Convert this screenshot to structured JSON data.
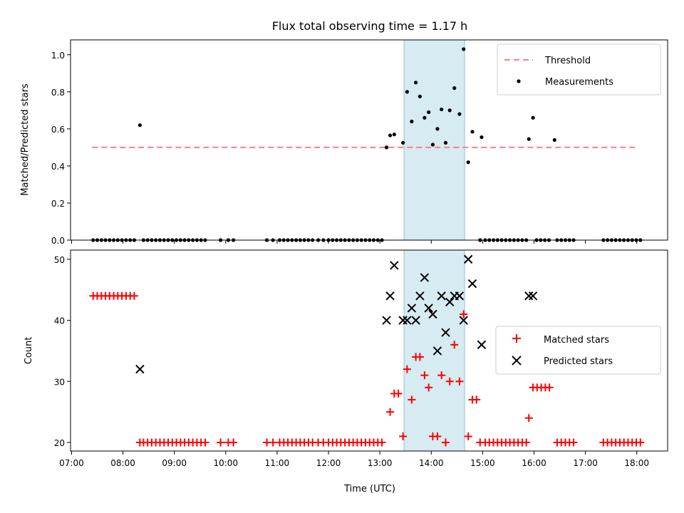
{
  "chart_data": [
    {
      "type": "scatter",
      "title": "Flux total observing time = 1.17 h",
      "ylabel": "Matched/Predicted stars",
      "xlabel": "",
      "x_range_hours": [
        6.98,
        18.6
      ],
      "ylim": [
        0,
        1.08
      ],
      "yticks": [
        "0.0",
        "0.2",
        "0.4",
        "0.6",
        "0.8",
        "1.0"
      ],
      "yticks_values": [
        0,
        0.2,
        0.4,
        0.6,
        0.8,
        1.0
      ],
      "highlight_span": {
        "start": 13.47,
        "end": 14.65,
        "color": "#add8e6"
      },
      "threshold": {
        "name": "Threshold",
        "value": 0.5,
        "x_start": 7.4,
        "x_end": 18.0,
        "color": "#ff7f7f"
      },
      "measurements_name": "Measurements",
      "zero_points": [
        7.42,
        7.5,
        7.58,
        7.66,
        7.74,
        7.82,
        7.9,
        7.98,
        8.06,
        8.14,
        8.22,
        8.4,
        8.48,
        8.56,
        8.64,
        8.72,
        8.8,
        8.88,
        8.96,
        9.04,
        9.12,
        9.2,
        9.28,
        9.36,
        9.44,
        9.52,
        9.6,
        9.9,
        10.05,
        10.15,
        10.8,
        10.92,
        11.05,
        11.13,
        11.21,
        11.29,
        11.37,
        11.45,
        11.53,
        11.61,
        11.69,
        11.8,
        11.9,
        12.0,
        12.08,
        12.16,
        12.24,
        12.32,
        12.4,
        12.48,
        12.56,
        12.64,
        12.72,
        12.8,
        12.88,
        12.96,
        13.04,
        14.95,
        15.05,
        15.13,
        15.21,
        15.29,
        15.37,
        15.45,
        15.53,
        15.61,
        15.69,
        15.77,
        15.85,
        16.05,
        16.13,
        16.21,
        16.29,
        16.45,
        16.53,
        16.61,
        16.69,
        16.77,
        17.35,
        17.43,
        17.51,
        17.59,
        17.67,
        17.75,
        17.83,
        17.91,
        17.99,
        18.07
      ],
      "points": [
        {
          "x": 8.33,
          "y": 0.62
        },
        {
          "x": 13.13,
          "y": 0.5
        },
        {
          "x": 13.2,
          "y": 0.565
        },
        {
          "x": 13.28,
          "y": 0.57
        },
        {
          "x": 13.45,
          "y": 0.525
        },
        {
          "x": 13.53,
          "y": 0.8
        },
        {
          "x": 13.62,
          "y": 0.64
        },
        {
          "x": 13.7,
          "y": 0.85
        },
        {
          "x": 13.78,
          "y": 0.775
        },
        {
          "x": 13.87,
          "y": 0.66
        },
        {
          "x": 13.95,
          "y": 0.69
        },
        {
          "x": 14.03,
          "y": 0.515
        },
        {
          "x": 14.12,
          "y": 0.6
        },
        {
          "x": 14.2,
          "y": 0.705
        },
        {
          "x": 14.28,
          "y": 0.525
        },
        {
          "x": 14.36,
          "y": 0.7
        },
        {
          "x": 14.45,
          "y": 0.82
        },
        {
          "x": 14.55,
          "y": 0.68
        },
        {
          "x": 14.63,
          "y": 1.03
        },
        {
          "x": 14.72,
          "y": 0.42
        },
        {
          "x": 14.8,
          "y": 0.585
        },
        {
          "x": 14.98,
          "y": 0.555
        },
        {
          "x": 15.9,
          "y": 0.545
        },
        {
          "x": 15.98,
          "y": 0.66
        },
        {
          "x": 16.4,
          "y": 0.54
        }
      ]
    },
    {
      "type": "scatter",
      "title": "",
      "ylabel": "Count",
      "xlabel": "Time (UTC)",
      "x_range_hours": [
        6.98,
        18.6
      ],
      "ylim": [
        18.6,
        51.5
      ],
      "yticks": [
        "20",
        "30",
        "40",
        "50"
      ],
      "yticks_values": [
        20,
        30,
        40,
        50
      ],
      "xticks": [
        "07:00",
        "08:00",
        "09:00",
        "10:00",
        "11:00",
        "12:00",
        "13:00",
        "14:00",
        "15:00",
        "16:00",
        "17:00",
        "18:00"
      ],
      "xticks_values": [
        7,
        8,
        9,
        10,
        11,
        12,
        13,
        14,
        15,
        16,
        17,
        18
      ],
      "highlight_span": {
        "start": 13.47,
        "end": 14.65,
        "color": "#add8e6"
      },
      "legend_position": "center-right",
      "series": [
        {
          "name": "Matched stars",
          "marker": "+",
          "color": "#ff0000",
          "points": [
            {
              "x": 7.42,
              "y": 44
            },
            {
              "x": 7.5,
              "y": 44
            },
            {
              "x": 7.58,
              "y": 44
            },
            {
              "x": 7.66,
              "y": 44
            },
            {
              "x": 7.74,
              "y": 44
            },
            {
              "x": 7.82,
              "y": 44
            },
            {
              "x": 7.9,
              "y": 44
            },
            {
              "x": 7.98,
              "y": 44
            },
            {
              "x": 8.06,
              "y": 44
            },
            {
              "x": 8.14,
              "y": 44
            },
            {
              "x": 8.22,
              "y": 44
            },
            {
              "x": 8.33,
              "y": 20
            },
            {
              "x": 8.4,
              "y": 20
            },
            {
              "x": 8.48,
              "y": 20
            },
            {
              "x": 8.56,
              "y": 20
            },
            {
              "x": 8.64,
              "y": 20
            },
            {
              "x": 8.72,
              "y": 20
            },
            {
              "x": 8.8,
              "y": 20
            },
            {
              "x": 8.88,
              "y": 20
            },
            {
              "x": 8.96,
              "y": 20
            },
            {
              "x": 9.04,
              "y": 20
            },
            {
              "x": 9.12,
              "y": 20
            },
            {
              "x": 9.2,
              "y": 20
            },
            {
              "x": 9.28,
              "y": 20
            },
            {
              "x": 9.36,
              "y": 20
            },
            {
              "x": 9.44,
              "y": 20
            },
            {
              "x": 9.52,
              "y": 20
            },
            {
              "x": 9.6,
              "y": 20
            },
            {
              "x": 9.9,
              "y": 20
            },
            {
              "x": 10.05,
              "y": 20
            },
            {
              "x": 10.15,
              "y": 20
            },
            {
              "x": 10.8,
              "y": 20
            },
            {
              "x": 10.92,
              "y": 20
            },
            {
              "x": 11.05,
              "y": 20
            },
            {
              "x": 11.13,
              "y": 20
            },
            {
              "x": 11.21,
              "y": 20
            },
            {
              "x": 11.29,
              "y": 20
            },
            {
              "x": 11.37,
              "y": 20
            },
            {
              "x": 11.45,
              "y": 20
            },
            {
              "x": 11.53,
              "y": 20
            },
            {
              "x": 11.61,
              "y": 20
            },
            {
              "x": 11.69,
              "y": 20
            },
            {
              "x": 11.8,
              "y": 20
            },
            {
              "x": 11.9,
              "y": 20
            },
            {
              "x": 12.0,
              "y": 20
            },
            {
              "x": 12.08,
              "y": 20
            },
            {
              "x": 12.16,
              "y": 20
            },
            {
              "x": 12.24,
              "y": 20
            },
            {
              "x": 12.32,
              "y": 20
            },
            {
              "x": 12.4,
              "y": 20
            },
            {
              "x": 12.48,
              "y": 20
            },
            {
              "x": 12.56,
              "y": 20
            },
            {
              "x": 12.64,
              "y": 20
            },
            {
              "x": 12.72,
              "y": 20
            },
            {
              "x": 12.8,
              "y": 20
            },
            {
              "x": 12.88,
              "y": 20
            },
            {
              "x": 12.96,
              "y": 20
            },
            {
              "x": 13.04,
              "y": 20
            },
            {
              "x": 13.2,
              "y": 25
            },
            {
              "x": 13.28,
              "y": 28
            },
            {
              "x": 13.36,
              "y": 28
            },
            {
              "x": 13.45,
              "y": 21
            },
            {
              "x": 13.53,
              "y": 32
            },
            {
              "x": 13.62,
              "y": 27
            },
            {
              "x": 13.7,
              "y": 34
            },
            {
              "x": 13.78,
              "y": 34
            },
            {
              "x": 13.87,
              "y": 31
            },
            {
              "x": 13.95,
              "y": 29
            },
            {
              "x": 14.03,
              "y": 21
            },
            {
              "x": 14.12,
              "y": 21
            },
            {
              "x": 14.2,
              "y": 31
            },
            {
              "x": 14.28,
              "y": 20
            },
            {
              "x": 14.36,
              "y": 30
            },
            {
              "x": 14.45,
              "y": 36
            },
            {
              "x": 14.55,
              "y": 30
            },
            {
              "x": 14.63,
              "y": 41
            },
            {
              "x": 14.72,
              "y": 21
            },
            {
              "x": 14.8,
              "y": 27
            },
            {
              "x": 14.88,
              "y": 27
            },
            {
              "x": 14.95,
              "y": 20
            },
            {
              "x": 15.05,
              "y": 20
            },
            {
              "x": 15.13,
              "y": 20
            },
            {
              "x": 15.21,
              "y": 20
            },
            {
              "x": 15.29,
              "y": 20
            },
            {
              "x": 15.37,
              "y": 20
            },
            {
              "x": 15.45,
              "y": 20
            },
            {
              "x": 15.53,
              "y": 20
            },
            {
              "x": 15.61,
              "y": 20
            },
            {
              "x": 15.69,
              "y": 20
            },
            {
              "x": 15.77,
              "y": 20
            },
            {
              "x": 15.85,
              "y": 20
            },
            {
              "x": 15.9,
              "y": 24
            },
            {
              "x": 15.98,
              "y": 29
            },
            {
              "x": 16.06,
              "y": 29
            },
            {
              "x": 16.14,
              "y": 29
            },
            {
              "x": 16.22,
              "y": 29
            },
            {
              "x": 16.3,
              "y": 29
            },
            {
              "x": 16.45,
              "y": 20
            },
            {
              "x": 16.53,
              "y": 20
            },
            {
              "x": 16.61,
              "y": 20
            },
            {
              "x": 16.69,
              "y": 20
            },
            {
              "x": 16.77,
              "y": 20
            },
            {
              "x": 17.35,
              "y": 20
            },
            {
              "x": 17.43,
              "y": 20
            },
            {
              "x": 17.51,
              "y": 20
            },
            {
              "x": 17.59,
              "y": 20
            },
            {
              "x": 17.67,
              "y": 20
            },
            {
              "x": 17.75,
              "y": 20
            },
            {
              "x": 17.83,
              "y": 20
            },
            {
              "x": 17.91,
              "y": 20
            },
            {
              "x": 17.99,
              "y": 20
            },
            {
              "x": 18.07,
              "y": 20
            }
          ]
        },
        {
          "name": "Predicted stars",
          "marker": "x",
          "color": "#000000",
          "points": [
            {
              "x": 8.33,
              "y": 32
            },
            {
              "x": 13.13,
              "y": 40
            },
            {
              "x": 13.2,
              "y": 44
            },
            {
              "x": 13.28,
              "y": 49
            },
            {
              "x": 13.45,
              "y": 40
            },
            {
              "x": 13.53,
              "y": 40
            },
            {
              "x": 13.62,
              "y": 42
            },
            {
              "x": 13.7,
              "y": 40
            },
            {
              "x": 13.78,
              "y": 44
            },
            {
              "x": 13.87,
              "y": 47
            },
            {
              "x": 13.95,
              "y": 42
            },
            {
              "x": 14.03,
              "y": 41
            },
            {
              "x": 14.12,
              "y": 35
            },
            {
              "x": 14.2,
              "y": 44
            },
            {
              "x": 14.28,
              "y": 38
            },
            {
              "x": 14.36,
              "y": 43
            },
            {
              "x": 14.45,
              "y": 44
            },
            {
              "x": 14.55,
              "y": 44
            },
            {
              "x": 14.63,
              "y": 40
            },
            {
              "x": 14.72,
              "y": 50
            },
            {
              "x": 14.8,
              "y": 46
            },
            {
              "x": 14.98,
              "y": 36
            },
            {
              "x": 15.9,
              "y": 44
            },
            {
              "x": 15.98,
              "y": 44
            }
          ]
        }
      ]
    }
  ]
}
